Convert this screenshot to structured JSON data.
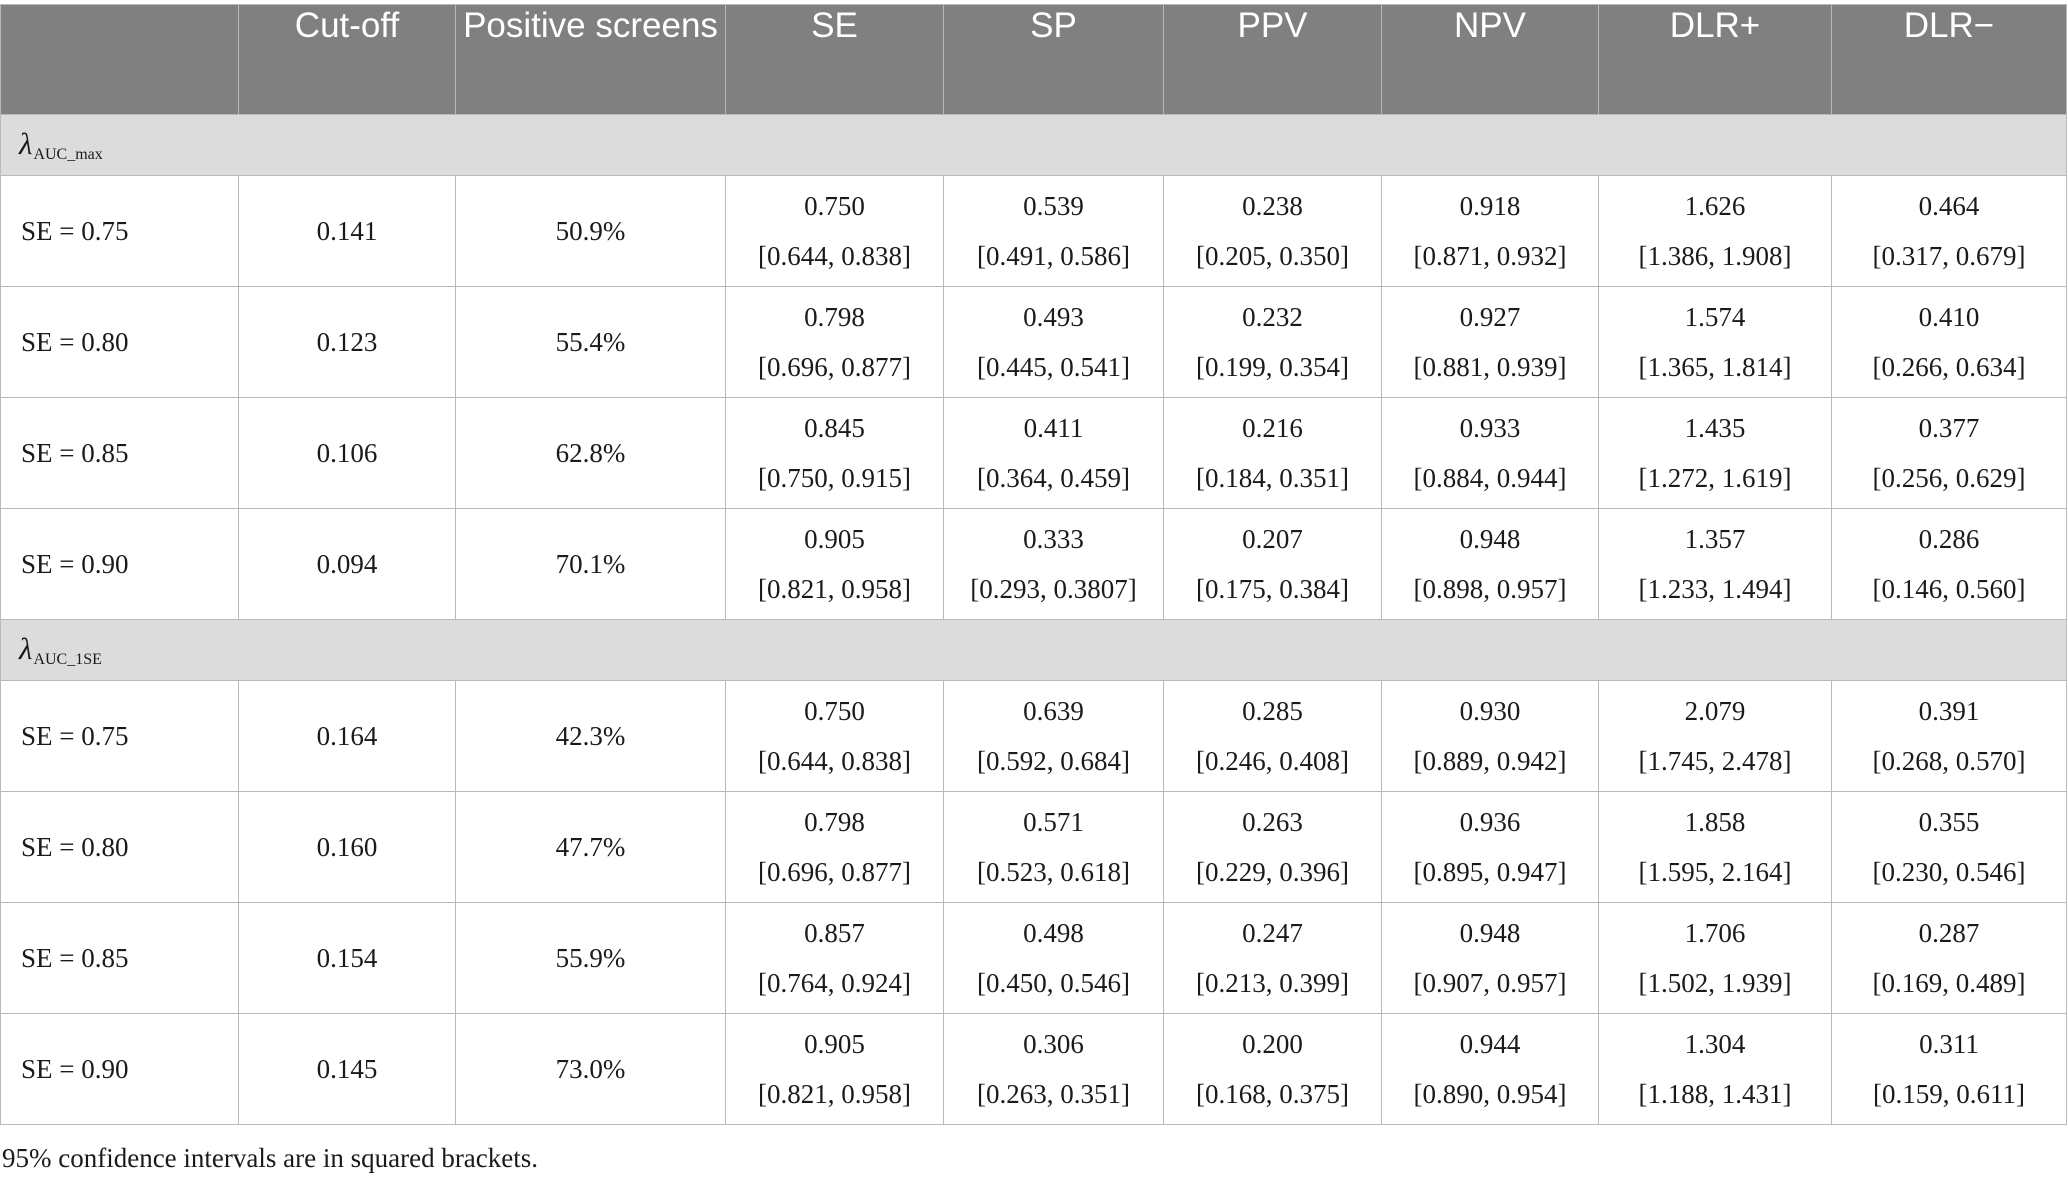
{
  "table": {
    "headers": [
      "",
      "Cut-off",
      "Positive screens",
      "SE",
      "SP",
      "PPV",
      "NPV",
      "DLR+",
      "DLR−"
    ],
    "sections": [
      {
        "label_symbol": "λ",
        "label_sub": "AUC_max",
        "rows": [
          {
            "label": "SE = 0.75",
            "cutoff": "0.141",
            "positive": "50.9%",
            "metrics": [
              {
                "est": "0.750",
                "ci": "[0.644, 0.838]"
              },
              {
                "est": "0.539",
                "ci": "[0.491, 0.586]"
              },
              {
                "est": "0.238",
                "ci": "[0.205, 0.350]"
              },
              {
                "est": "0.918",
                "ci": "[0.871, 0.932]"
              },
              {
                "est": "1.626",
                "ci": "[1.386, 1.908]"
              },
              {
                "est": "0.464",
                "ci": "[0.317, 0.679]"
              }
            ]
          },
          {
            "label": "SE = 0.80",
            "cutoff": "0.123",
            "positive": "55.4%",
            "metrics": [
              {
                "est": "0.798",
                "ci": "[0.696, 0.877]"
              },
              {
                "est": "0.493",
                "ci": "[0.445, 0.541]"
              },
              {
                "est": "0.232",
                "ci": "[0.199, 0.354]"
              },
              {
                "est": "0.927",
                "ci": "[0.881, 0.939]"
              },
              {
                "est": "1.574",
                "ci": "[1.365, 1.814]"
              },
              {
                "est": "0.410",
                "ci": "[0.266, 0.634]"
              }
            ]
          },
          {
            "label": "SE = 0.85",
            "cutoff": "0.106",
            "positive": "62.8%",
            "metrics": [
              {
                "est": "0.845",
                "ci": "[0.750, 0.915]"
              },
              {
                "est": "0.411",
                "ci": "[0.364, 0.459]"
              },
              {
                "est": "0.216",
                "ci": "[0.184, 0.351]"
              },
              {
                "est": "0.933",
                "ci": "[0.884, 0.944]"
              },
              {
                "est": "1.435",
                "ci": "[1.272, 1.619]"
              },
              {
                "est": "0.377",
                "ci": "[0.256, 0.629]"
              }
            ]
          },
          {
            "label": "SE = 0.90",
            "cutoff": "0.094",
            "positive": "70.1%",
            "metrics": [
              {
                "est": "0.905",
                "ci": "[0.821, 0.958]"
              },
              {
                "est": "0.333",
                "ci": "[0.293, 0.3807]"
              },
              {
                "est": "0.207",
                "ci": "[0.175, 0.384]"
              },
              {
                "est": "0.948",
                "ci": "[0.898, 0.957]"
              },
              {
                "est": "1.357",
                "ci": "[1.233, 1.494]"
              },
              {
                "est": "0.286",
                "ci": "[0.146, 0.560]"
              }
            ]
          }
        ]
      },
      {
        "label_symbol": "λ",
        "label_sub": "AUC_1SE",
        "rows": [
          {
            "label": "SE = 0.75",
            "cutoff": "0.164",
            "positive": "42.3%",
            "metrics": [
              {
                "est": "0.750",
                "ci": "[0.644, 0.838]"
              },
              {
                "est": "0.639",
                "ci": "[0.592, 0.684]"
              },
              {
                "est": "0.285",
                "ci": "[0.246, 0.408]"
              },
              {
                "est": "0.930",
                "ci": "[0.889, 0.942]"
              },
              {
                "est": "2.079",
                "ci": "[1.745, 2.478]"
              },
              {
                "est": "0.391",
                "ci": "[0.268, 0.570]"
              }
            ]
          },
          {
            "label": "SE = 0.80",
            "cutoff": "0.160",
            "positive": "47.7%",
            "metrics": [
              {
                "est": "0.798",
                "ci": "[0.696, 0.877]"
              },
              {
                "est": "0.571",
                "ci": "[0.523, 0.618]"
              },
              {
                "est": "0.263",
                "ci": "[0.229, 0.396]"
              },
              {
                "est": "0.936",
                "ci": "[0.895, 0.947]"
              },
              {
                "est": "1.858",
                "ci": "[1.595, 2.164]"
              },
              {
                "est": "0.355",
                "ci": "[0.230, 0.546]"
              }
            ]
          },
          {
            "label": "SE = 0.85",
            "cutoff": "0.154",
            "positive": "55.9%",
            "metrics": [
              {
                "est": "0.857",
                "ci": "[0.764, 0.924]"
              },
              {
                "est": "0.498",
                "ci": "[0.450, 0.546]"
              },
              {
                "est": "0.247",
                "ci": "[0.213, 0.399]"
              },
              {
                "est": "0.948",
                "ci": "[0.907, 0.957]"
              },
              {
                "est": "1.706",
                "ci": "[1.502, 1.939]"
              },
              {
                "est": "0.287",
                "ci": "[0.169, 0.489]"
              }
            ]
          },
          {
            "label": "SE = 0.90",
            "cutoff": "0.145",
            "positive": "73.0%",
            "metrics": [
              {
                "est": "0.905",
                "ci": "[0.821, 0.958]"
              },
              {
                "est": "0.306",
                "ci": "[0.263, 0.351]"
              },
              {
                "est": "0.200",
                "ci": "[0.168, 0.375]"
              },
              {
                "est": "0.944",
                "ci": "[0.890, 0.954]"
              },
              {
                "est": "1.304",
                "ci": "[1.188, 1.431]"
              },
              {
                "est": "0.311",
                "ci": "[0.159, 0.611]"
              }
            ]
          }
        ]
      }
    ],
    "footnote": "95% confidence intervals are in squared brackets."
  }
}
